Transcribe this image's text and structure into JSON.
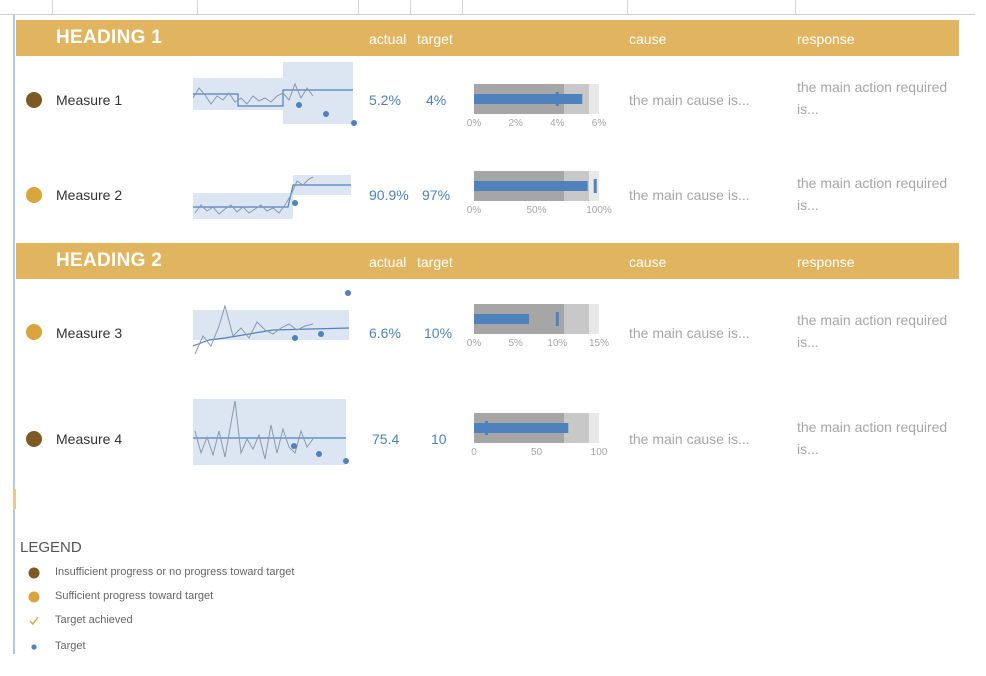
{
  "colors": {
    "header": "#e1b460",
    "insufficient": "#7d5a23",
    "sufficient": "#d9a43c",
    "accent_blue": "#4f81bd",
    "band": "#dce6f2",
    "bullet_dark": "#a6a6a6",
    "bullet_mid": "#c8c8c8",
    "bullet_light": "#e8e8e8"
  },
  "sections": [
    {
      "heading": "HEADING 1",
      "cols": {
        "actual": "actual",
        "target": "target",
        "cause": "cause",
        "response": "response"
      },
      "measures": [
        {
          "name": "Measure 1",
          "status": "insufficient",
          "actual": "5.2%",
          "target": "4%",
          "cause": "the main cause is...",
          "response": "the main action required is...",
          "bullet": {
            "actual": 5.2,
            "target": 4,
            "max": 6,
            "ticks": [
              "0%",
              "2%",
              "4%",
              "6%"
            ]
          }
        },
        {
          "name": "Measure 2",
          "status": "sufficient",
          "actual": "90.9%",
          "target": "97%",
          "cause": "the main cause is...",
          "response": "the main action required is...",
          "bullet": {
            "actual": 90.9,
            "target": 97,
            "max": 100,
            "ticks": [
              "0%",
              "50%",
              "100%"
            ]
          }
        }
      ]
    },
    {
      "heading": "HEADING 2",
      "cols": {
        "actual": "actual",
        "target": "target",
        "cause": "cause",
        "response": "response"
      },
      "measures": [
        {
          "name": "Measure 3",
          "status": "sufficient",
          "actual": "6.6%",
          "target": "10%",
          "cause": "the main cause is...",
          "response": "the main action required is...",
          "bullet": {
            "actual": 6.6,
            "target": 10,
            "max": 15,
            "ticks": [
              "0%",
              "5%",
              "10%",
              "15%"
            ]
          }
        },
        {
          "name": "Measure 4",
          "status": "insufficient",
          "actual": "75.4",
          "target": "10",
          "cause": "the main cause is...",
          "response": "the main action required is...",
          "bullet": {
            "actual": 75.4,
            "target": 10,
            "max": 100,
            "ticks": [
              "0",
              "50",
              "100"
            ]
          }
        }
      ]
    }
  ],
  "legend": {
    "title": "LEGEND",
    "items": [
      {
        "icon": "dark-circle",
        "text": "Insufficient progress or no progress toward target"
      },
      {
        "icon": "gold-circle",
        "text": "Sufficient progress toward target"
      },
      {
        "icon": "check-icon",
        "text": "Target achieved"
      },
      {
        "icon": "blue-dot",
        "text": "Target"
      }
    ]
  },
  "chart_data": [
    {
      "type": "bar",
      "title": "Measure 1",
      "categories": [
        "Measure 1"
      ],
      "series": [
        {
          "name": "actual",
          "values": [
            5.2
          ]
        },
        {
          "name": "target",
          "values": [
            4
          ]
        }
      ],
      "ylim": [
        0,
        6
      ],
      "tick_labels": [
        "0%",
        "2%",
        "4%",
        "6%"
      ]
    },
    {
      "type": "bar",
      "title": "Measure 2",
      "categories": [
        "Measure 2"
      ],
      "series": [
        {
          "name": "actual",
          "values": [
            90.9
          ]
        },
        {
          "name": "target",
          "values": [
            97
          ]
        }
      ],
      "ylim": [
        0,
        100
      ],
      "tick_labels": [
        "0%",
        "50%",
        "100%"
      ]
    },
    {
      "type": "bar",
      "title": "Measure 3",
      "categories": [
        "Measure 3"
      ],
      "series": [
        {
          "name": "actual",
          "values": [
            6.6
          ]
        },
        {
          "name": "target",
          "values": [
            10
          ]
        }
      ],
      "ylim": [
        0,
        15
      ],
      "tick_labels": [
        "0%",
        "5%",
        "10%",
        "15%"
      ]
    },
    {
      "type": "bar",
      "title": "Measure 4",
      "categories": [
        "Measure 4"
      ],
      "series": [
        {
          "name": "actual",
          "values": [
            75.4
          ]
        },
        {
          "name": "target",
          "values": [
            10
          ]
        }
      ],
      "ylim": [
        0,
        100
      ],
      "tick_labels": [
        "0",
        "50",
        "100"
      ]
    }
  ]
}
